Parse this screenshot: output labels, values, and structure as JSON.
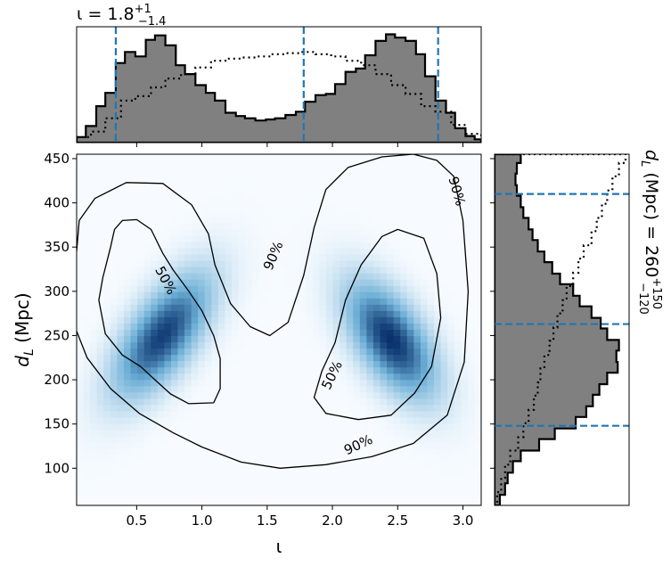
{
  "chart_data": {
    "type": "corner",
    "xlim": [
      0.04,
      3.14
    ],
    "ylim": [
      58,
      455
    ],
    "x_ticks": [
      0.5,
      1.0,
      1.5,
      2.0,
      2.5,
      3.0
    ],
    "x_tick_labels": [
      "0.5",
      "1.0",
      "1.5",
      "2.0",
      "2.5",
      "3.0"
    ],
    "y_ticks": [
      100,
      150,
      200,
      250,
      300,
      350,
      400,
      450
    ],
    "y_tick_labels": [
      "100",
      "150",
      "200",
      "250",
      "300",
      "350",
      "400",
      "450"
    ],
    "xlabel": "ι",
    "ylabel_main": "d",
    "ylabel_sub": "L",
    "ylabel_units": "(Mpc)",
    "top_title": {
      "prefix": "ι = 1.8",
      "sup": "+1",
      "sub": "−1.4"
    },
    "right_title": {
      "main": "d",
      "sub_L": "L",
      "mid": " (Mpc) = 260",
      "sup": "+150",
      "sub": "−120"
    },
    "iota_quantiles": [
      0.34,
      1.78,
      2.81
    ],
    "dL_quantiles": [
      148,
      263,
      410
    ],
    "iota_hist_filled": {
      "bins": [
        0.04,
        0.11,
        0.19,
        0.26,
        0.34,
        0.41,
        0.49,
        0.57,
        0.64,
        0.72,
        0.8,
        0.87,
        0.95,
        1.03,
        1.1,
        1.18,
        1.26,
        1.33,
        1.41,
        1.49,
        1.56,
        1.64,
        1.72,
        1.79,
        1.87,
        1.95,
        2.02,
        2.1,
        2.18,
        2.25,
        2.33,
        2.41,
        2.48,
        2.56,
        2.64,
        2.71,
        2.79,
        2.87,
        2.94,
        3.02,
        3.09,
        3.14
      ],
      "heights": [
        0.05,
        0.15,
        0.33,
        0.45,
        0.72,
        0.82,
        0.78,
        0.93,
        0.97,
        0.88,
        0.7,
        0.62,
        0.52,
        0.45,
        0.38,
        0.27,
        0.24,
        0.22,
        0.2,
        0.21,
        0.22,
        0.25,
        0.28,
        0.37,
        0.43,
        0.44,
        0.53,
        0.64,
        0.67,
        0.79,
        0.92,
        0.98,
        0.95,
        0.92,
        0.8,
        0.6,
        0.38,
        0.27,
        0.13,
        0.06,
        0.03
      ]
    },
    "iota_hist_dotted": {
      "bins": [
        0.04,
        0.15,
        0.26,
        0.38,
        0.49,
        0.61,
        0.72,
        0.84,
        0.95,
        1.07,
        1.18,
        1.3,
        1.41,
        1.53,
        1.64,
        1.76,
        1.87,
        1.99,
        2.1,
        2.22,
        2.33,
        2.45,
        2.56,
        2.68,
        2.79,
        2.91,
        3.02,
        3.14
      ],
      "heights": [
        0.05,
        0.1,
        0.22,
        0.38,
        0.42,
        0.5,
        0.58,
        0.62,
        0.68,
        0.74,
        0.76,
        0.77,
        0.78,
        0.8,
        0.81,
        0.82,
        0.8,
        0.78,
        0.74,
        0.7,
        0.62,
        0.52,
        0.44,
        0.33,
        0.28,
        0.16,
        0.08
      ]
    },
    "dL_hist_filled": {
      "bins": [
        58,
        70,
        83,
        95,
        108,
        120,
        133,
        145,
        158,
        170,
        183,
        195,
        208,
        220,
        233,
        245,
        258,
        270,
        283,
        295,
        308,
        320,
        333,
        345,
        358,
        370,
        383,
        395,
        408,
        420,
        433,
        445,
        455
      ],
      "heights": [
        0.04,
        0.08,
        0.1,
        0.14,
        0.2,
        0.34,
        0.46,
        0.62,
        0.7,
        0.75,
        0.8,
        0.86,
        0.94,
        0.93,
        0.95,
        0.86,
        0.81,
        0.74,
        0.65,
        0.6,
        0.5,
        0.44,
        0.38,
        0.33,
        0.29,
        0.26,
        0.22,
        0.2,
        0.17,
        0.16,
        0.17,
        0.2
      ]
    },
    "dL_hist_dotted": {
      "bins": [
        58,
        73,
        89,
        104,
        120,
        135,
        151,
        166,
        182,
        197,
        213,
        228,
        244,
        259,
        275,
        290,
        306,
        321,
        337,
        352,
        368,
        383,
        399,
        414,
        430,
        445,
        455
      ],
      "heights": [
        0.02,
        0.05,
        0.08,
        0.12,
        0.18,
        0.22,
        0.26,
        0.3,
        0.33,
        0.35,
        0.38,
        0.42,
        0.45,
        0.48,
        0.52,
        0.55,
        0.6,
        0.64,
        0.68,
        0.74,
        0.78,
        0.82,
        0.86,
        0.9,
        0.95,
        1.0
      ]
    },
    "contours": [
      {
        "level_label": "50%",
        "lobe": "left",
        "points": [
          [
            0.33,
            370
          ],
          [
            0.39,
            380
          ],
          [
            0.5,
            381
          ],
          [
            0.61,
            370
          ],
          [
            0.7,
            343
          ],
          [
            0.78,
            324
          ],
          [
            0.9,
            300
          ],
          [
            1.0,
            278
          ],
          [
            1.09,
            250
          ],
          [
            1.14,
            224
          ],
          [
            1.14,
            190
          ],
          [
            1.09,
            174
          ],
          [
            0.9,
            173
          ],
          [
            0.76,
            184
          ],
          [
            0.64,
            200
          ],
          [
            0.53,
            215
          ],
          [
            0.39,
            228
          ],
          [
            0.26,
            252
          ],
          [
            0.21,
            290
          ],
          [
            0.24,
            315
          ],
          [
            0.3,
            350
          ],
          [
            0.33,
            370
          ]
        ]
      },
      {
        "level_label": "50%",
        "lobe": "right",
        "points": [
          [
            2.5,
            370
          ],
          [
            2.7,
            360
          ],
          [
            2.8,
            320
          ],
          [
            2.83,
            270
          ],
          [
            2.76,
            215
          ],
          [
            2.63,
            185
          ],
          [
            2.45,
            160
          ],
          [
            2.2,
            155
          ],
          [
            1.95,
            162
          ],
          [
            1.86,
            180
          ],
          [
            1.92,
            210
          ],
          [
            2.02,
            242
          ],
          [
            2.1,
            290
          ],
          [
            2.22,
            330
          ],
          [
            2.38,
            362
          ],
          [
            2.5,
            370
          ]
        ]
      },
      {
        "level_label": "90%",
        "lobe": "outer",
        "points": [
          [
            0.04,
            345
          ],
          [
            0.06,
            380
          ],
          [
            0.18,
            405
          ],
          [
            0.42,
            423
          ],
          [
            0.7,
            422
          ],
          [
            0.92,
            398
          ],
          [
            1.05,
            365
          ],
          [
            1.1,
            330
          ],
          [
            1.22,
            286
          ],
          [
            1.37,
            260
          ],
          [
            1.52,
            250
          ],
          [
            1.66,
            265
          ],
          [
            1.78,
            318
          ],
          [
            1.86,
            372
          ],
          [
            1.95,
            415
          ],
          [
            2.12,
            440
          ],
          [
            2.38,
            452
          ],
          [
            2.62,
            455
          ],
          [
            2.8,
            448
          ],
          [
            2.93,
            430
          ],
          [
            3.0,
            380
          ],
          [
            3.04,
            300
          ],
          [
            3.01,
            220
          ],
          [
            2.88,
            160
          ],
          [
            2.62,
            128
          ],
          [
            2.3,
            113
          ],
          [
            1.95,
            104
          ],
          [
            1.6,
            100
          ],
          [
            1.3,
            107
          ],
          [
            1.0,
            124
          ],
          [
            0.78,
            140
          ],
          [
            0.52,
            162
          ],
          [
            0.3,
            190
          ],
          [
            0.12,
            225
          ],
          [
            0.04,
            255
          ]
        ]
      }
    ],
    "contour_labels": [
      {
        "text": "50%",
        "x": 0.72,
        "y": 312,
        "rotate": 62
      },
      {
        "text": "50%",
        "x": 2.0,
        "y": 205,
        "rotate": -64
      },
      {
        "text": "90%",
        "x": 1.55,
        "y": 340,
        "rotate": -67
      },
      {
        "text": "90%",
        "x": 2.95,
        "y": 413,
        "rotate": 74
      },
      {
        "text": "90%",
        "x": 2.2,
        "y": 126,
        "rotate": -25
      }
    ],
    "density_peaks": [
      {
        "x": 0.7,
        "y": 250,
        "sx": 0.26,
        "sy": 48,
        "rho": 0.65,
        "w": 1.0
      },
      {
        "x": 2.45,
        "y": 245,
        "sx": 0.24,
        "sy": 45,
        "rho": -0.58,
        "w": 1.05
      }
    ],
    "colors": {
      "hist_fill": "#808080",
      "hist_edge": "#000000",
      "quantile_line": "#1f77b4",
      "contour": "#000000",
      "density_light": "#f7fbff",
      "density_dark": "#08306b"
    }
  }
}
